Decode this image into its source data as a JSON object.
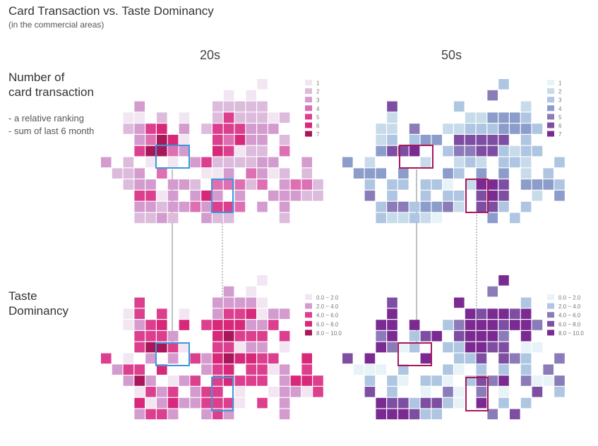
{
  "title": "Card Transaction vs. Taste Dominancy",
  "subtitle": "(in the commercial areas)",
  "columns": [
    "20s",
    "50s"
  ],
  "rows": [
    {
      "title": "Number of\ncard transaction",
      "notes": [
        "- a relative ranking",
        "- sum of last 6 month"
      ]
    },
    {
      "title": "Taste\nDominancy",
      "notes": []
    }
  ],
  "palettes": {
    "pink": [
      "#f1e6f1",
      "#dcbbdc",
      "#d49bcf",
      "#de6fb3",
      "#dd3f8f",
      "#d7287a",
      "#a8175a"
    ],
    "purple": [
      "#e8f3f8",
      "#c7dbea",
      "#aec6e1",
      "#8c9ccb",
      "#8b7bb8",
      "#7d4ea1",
      "#7b2a92"
    ],
    "highlight_blue": "#3a9ad9",
    "highlight_maroon": "#a8175a"
  },
  "chart_data": [
    {
      "type": "heatmap",
      "panel": "transaction-20s",
      "legend": [
        "1",
        "2",
        "3",
        "4",
        "5",
        "6",
        "7"
      ],
      "grid": [
        "..............1.....",
        "...........1.1......",
        "...3......22222.....",
        "..11.2.1..2522212...",
        "..2356.3.2555333....",
        "...34761..54633.2...",
        "...57743..65122.4...",
        "3.2.1.1.35222233..3.",
        ".223.4...113.4312.2.",
        "..233.332.44424.3442",
        "...5513.363.3..33322",
        "...3323343554.3.3...",
        "...2232..322....2..."
      ]
    },
    {
      "type": "heatmap",
      "panel": "transaction-50s",
      "legend": [
        "1",
        "2",
        "3",
        "4",
        "5",
        "6",
        "7"
      ],
      "grid": [
        "..............3.....",
        ".............5......",
        "....6.....3.....2...",
        "....2......224443...",
        "...22.5..223334443..",
        "...23.344.66666.3...",
        "...4667..355663233..",
        "4.2....2..232.332..3",
        ".444.4...43.4.4.2.3.",
        "..3.33.331.2776.4443",
        "..5.3..3.33.676..2.4",
        "...35534452.663.3...",
        "...322321....4.3...."
      ]
    },
    {
      "type": "heatmap",
      "panel": "taste-20s",
      "legend": [
        "0.0 ~ 2.0",
        "2.0 ~ 4.0",
        "4.0 ~ 6.0",
        "6.0 ~ 8.0",
        "8.0 ~ 10.0"
      ],
      "grid": [
        "..............0.....",
        "...........1.0......",
        "...2......11110.....",
        "..02.2.0..1223011...",
        "..0123.3.2333112....",
        "...2221...34222.2...",
        "...24420..22011.0...",
        "2.0.1.1.21343322..3.",
        ".122.3...123.2201.2.",
        "..141.012.23222.1332",
        "...0212.122.0..01102",
        "...3013112220.2.1...",
        "...1221..121....1..."
      ]
    },
    {
      "type": "heatmap",
      "panel": "taste-50s",
      "legend": [
        "0.0 ~ 2.0",
        "2.0 ~ 4.0",
        "4.0 ~ 6.0",
        "6.0 ~ 8.0",
        "8.0 ~ 10.0"
      ],
      "grid": [
        "..............4.....",
        ".............2......",
        "....3.....4.....1...",
        "....4......434434...",
        "...44.4..124443442..",
        "...24.134.34442.4...",
        "...4201..114433.00..",
        "3.4....4..113.321..2",
        ".000.1...10.1.1.1.2.",
        "..1.10.110.1324.2002",
        "..3.1..0.20.2.0..3.1",
        "...43313310.4.1.1...",
        "...444311....2.3...."
      ]
    }
  ]
}
